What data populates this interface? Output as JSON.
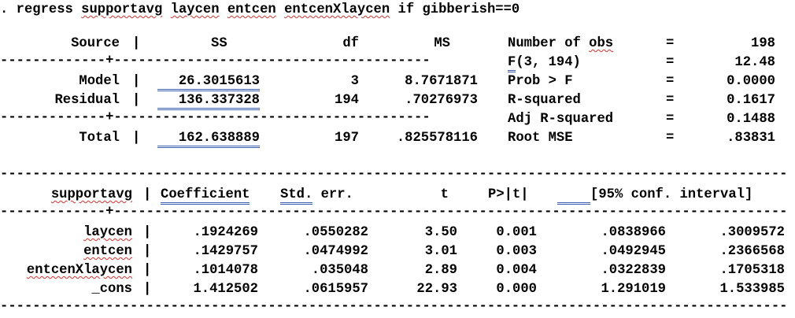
{
  "command": {
    "prefix": ". regress ",
    "depvar": "supportavg",
    "indep": [
      "laycen",
      "entcen",
      "entcenXlaycen"
    ],
    "if_kw": "if",
    "condition": "gibberish==0"
  },
  "anova": {
    "headers": {
      "source": "Source",
      "ss": "SS",
      "df": "df",
      "ms": "MS"
    },
    "rows": [
      {
        "source": "Model",
        "ss": "26.3015613",
        "df": "3",
        "ms": "8.7671871"
      },
      {
        "source": "Residual",
        "ss": "136.337328",
        "df": "194",
        "ms": ".70276973"
      },
      {
        "source": "Total",
        "ss": "162.638889",
        "df": "197",
        "ms": ".825578116"
      }
    ]
  },
  "stats": [
    {
      "label": "Number of obs",
      "value": "198"
    },
    {
      "label": "F(3, 194)",
      "value": "12.48"
    },
    {
      "label": "Prob > F",
      "value": "0.0000"
    },
    {
      "label": "R-squared",
      "value": "0.1617"
    },
    {
      "label": "Adj R-squared",
      "value": "0.1488"
    },
    {
      "label": "Root MSE",
      "value": ".83831"
    }
  ],
  "coef_table": {
    "headers": {
      "var": "supportavg",
      "coef": "Coefficient",
      "se": "Std. err.",
      "t": "t",
      "p": "P>|t|",
      "ci": "[95% conf. interval]"
    },
    "rows": [
      {
        "var": "laycen",
        "coef": ".1924269",
        "se": ".0550282",
        "t": "3.50",
        "p": "0.001",
        "lo": ".0838966",
        "hi": ".3009572"
      },
      {
        "var": "entcen",
        "coef": ".1429757",
        "se": ".0474992",
        "t": "3.01",
        "p": "0.003",
        "lo": ".0492945",
        "hi": ".2366568"
      },
      {
        "var": "entcenXlaycen",
        "coef": ".1014078",
        "se": ".035048",
        "t": "2.89",
        "p": "0.004",
        "lo": ".0322839",
        "hi": ".1705318"
      },
      {
        "var": "_cons",
        "coef": "1.412502",
        "se": ".0615957",
        "t": "22.93",
        "p": "0.000",
        "lo": "1.291019",
        "hi": "1.533985"
      }
    ]
  },
  "symbols": {
    "bar": "|",
    "eq": "=",
    "plus": "+"
  },
  "colors": {
    "squiggle": "#e0302c",
    "double_underline": "#3a5fb0"
  }
}
